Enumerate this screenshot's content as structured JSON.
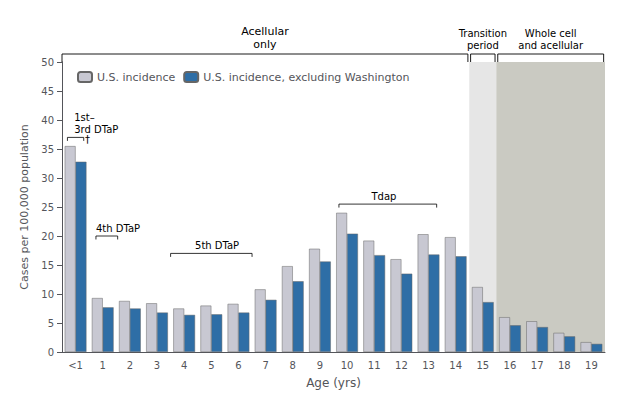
{
  "chart_data": {
    "type": "bar",
    "categories": [
      "<1",
      "1",
      "2",
      "3",
      "4",
      "5",
      "6",
      "7",
      "8",
      "9",
      "10",
      "11",
      "12",
      "13",
      "14",
      "15",
      "16",
      "17",
      "18",
      "19"
    ],
    "series": [
      {
        "name": "U.S. incidence",
        "color": "#c8c8d2",
        "values": [
          35.5,
          9.3,
          8.8,
          8.4,
          7.5,
          8.0,
          8.3,
          10.8,
          14.8,
          17.8,
          24.0,
          19.2,
          16.0,
          20.3,
          19.8,
          11.2,
          6.0,
          5.3,
          3.3,
          1.7
        ]
      },
      {
        "name": "U.S. incidence, excluding Washington",
        "color": "#2e6ea6",
        "values": [
          32.8,
          7.7,
          7.5,
          6.8,
          6.4,
          6.5,
          6.8,
          9.0,
          12.2,
          15.6,
          20.4,
          16.7,
          13.5,
          16.8,
          16.5,
          8.6,
          4.6,
          4.3,
          2.7,
          1.4
        ]
      }
    ],
    "xlabel": "Age (yrs)",
    "ylabel": "Cases per 100,000 population",
    "ylim": [
      0,
      50
    ],
    "yticks": [
      0,
      5,
      10,
      15,
      20,
      25,
      30,
      35,
      40,
      45,
      50
    ],
    "grid": false,
    "legend": "upper left",
    "annotations": [
      "1st–\n3rd DTaP",
      "†",
      "4th DTaP",
      "5th DTaP",
      "Tdap",
      "Acellular\nonly",
      "Transition\nperiod",
      "Whole cell\nand acellular"
    ]
  }
}
